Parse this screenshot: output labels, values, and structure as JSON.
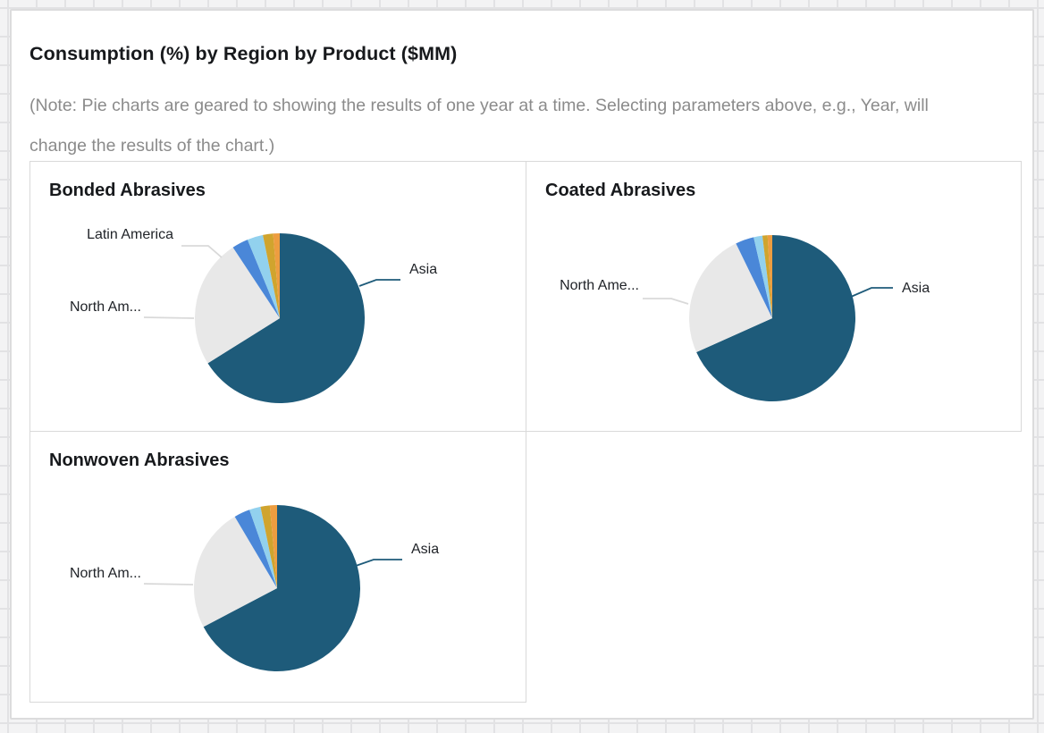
{
  "page": {
    "title": "Consumption (%) by Region by Product ($MM)",
    "note": "(Note: Pie charts are geared to showing the results of one year at a time. Selecting parameters above, e.g., Year, will change the results of the chart.)"
  },
  "colors": {
    "asia_teal": "#1e5b7a",
    "north_america_gray": "#e8e8e8",
    "latin_america_blue": "#4a87d8",
    "slice_sky_blue": "#92d1ee",
    "slice_gold": "#d0a42e",
    "slice_orange": "#ed9d40",
    "leader_line_gray": "#d9d9d9"
  },
  "chart_data": [
    {
      "type": "pie",
      "title": "Bonded Abrasives",
      "legend": "none",
      "slices": [
        {
          "label": "Asia",
          "pct": 66.1,
          "color": "#1e5b7a"
        },
        {
          "label": "North Am...",
          "pct": 24.6,
          "color": "#e8e8e8"
        },
        {
          "label": "Latin America",
          "pct": 3.1,
          "color": "#4a87d8"
        },
        {
          "label": "",
          "pct": 3.0,
          "color": "#92d1ee"
        },
        {
          "label": "",
          "pct": 1.95,
          "color": "#d0a42e"
        },
        {
          "label": "",
          "pct": 1.25,
          "color": "#ed9d40"
        }
      ],
      "callouts": [
        {
          "text": "Latin America",
          "line_color": "#d9d9d9"
        },
        {
          "text": "North Am...",
          "line_color": "#d9d9d9"
        },
        {
          "text": "Asia",
          "line_color": "#1e5b7a"
        }
      ]
    },
    {
      "type": "pie",
      "title": "Coated Abrasives",
      "legend": "none",
      "slices": [
        {
          "label": "Asia",
          "pct": 68.3,
          "color": "#1e5b7a"
        },
        {
          "label": "North Ame...",
          "pct": 24.5,
          "color": "#e8e8e8"
        },
        {
          "label": "",
          "pct": 3.6,
          "color": "#4a87d8"
        },
        {
          "label": "",
          "pct": 1.7,
          "color": "#92d1ee"
        },
        {
          "label": "",
          "pct": 1.0,
          "color": "#d0a42e"
        },
        {
          "label": "",
          "pct": 0.9,
          "color": "#ed9d40"
        }
      ],
      "callouts": [
        {
          "text": "North Ame...",
          "line_color": "#d9d9d9"
        },
        {
          "text": "Asia",
          "line_color": "#1e5b7a"
        }
      ]
    },
    {
      "type": "pie",
      "title": "Nonwoven Abrasives",
      "legend": "none",
      "slices": [
        {
          "label": "Asia",
          "pct": 67.3,
          "color": "#1e5b7a"
        },
        {
          "label": "North Am...",
          "pct": 24.2,
          "color": "#e8e8e8"
        },
        {
          "label": "",
          "pct": 3.1,
          "color": "#4a87d8"
        },
        {
          "label": "",
          "pct": 2.2,
          "color": "#92d1ee"
        },
        {
          "label": "",
          "pct": 1.8,
          "color": "#d0a42e"
        },
        {
          "label": "",
          "pct": 1.4,
          "color": "#ed9d40"
        }
      ],
      "callouts": [
        {
          "text": "North Am...",
          "line_color": "#d9d9d9"
        },
        {
          "text": "Asia",
          "line_color": "#1e5b7a"
        }
      ]
    }
  ]
}
